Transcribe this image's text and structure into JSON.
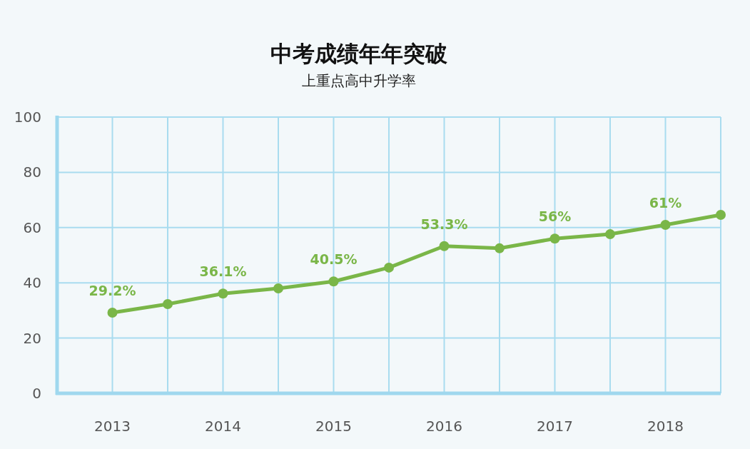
{
  "chart_data": {
    "type": "line",
    "title": "中考成绩年年突破",
    "subtitle": "上重点高中升学率",
    "x": [
      2013,
      2013.5,
      2014,
      2014.5,
      2015,
      2015.5,
      2016,
      2016.5,
      2017,
      2017.5,
      2018,
      2018.5
    ],
    "series": [
      {
        "color": "#7ab648",
        "values": [
          29.2,
          32.3,
          36.1,
          38,
          40.5,
          45.5,
          53.3,
          52.5,
          56,
          57.6,
          61,
          64.6
        ],
        "value_labels": [
          "29.2%",
          null,
          "36.1%",
          null,
          "40.5%",
          null,
          "53.3%",
          null,
          "56%",
          null,
          "61%",
          null
        ]
      }
    ],
    "xlim": [
      2012.5,
      2018.5
    ],
    "xticks": [
      {
        "value": 2012.5,
        "label": null
      },
      2013,
      {
        "value": 2013.5,
        "label": null
      },
      2014,
      {
        "value": 2014.5,
        "label": null
      },
      2015,
      {
        "value": 2015.5,
        "label": null
      },
      2016,
      {
        "value": 2016.5,
        "label": null
      },
      2017,
      {
        "value": 2017.5,
        "label": null
      },
      2018,
      {
        "value": 2018.5,
        "label": null
      }
    ],
    "ylim": [
      0,
      100
    ],
    "yticks": [
      0,
      20,
      40,
      60,
      80,
      100
    ],
    "grid": true,
    "marker": "circle",
    "line_style": "solid"
  }
}
